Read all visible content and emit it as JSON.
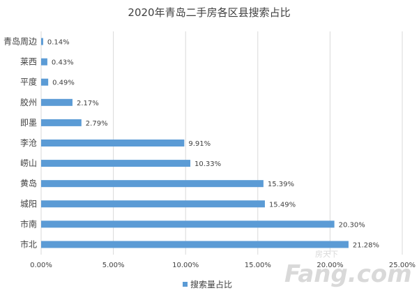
{
  "chart_data": {
    "type": "bar",
    "orientation": "horizontal",
    "title": "2020年青岛二手房各区县搜索占比",
    "categories": [
      "青岛周边",
      "莱西",
      "平度",
      "胶州",
      "即墨",
      "李沧",
      "崂山",
      "黄岛",
      "城阳",
      "市南",
      "市北"
    ],
    "series": [
      {
        "name": "搜索量占比",
        "values": [
          0.14,
          0.43,
          0.49,
          2.17,
          2.79,
          9.91,
          10.33,
          15.39,
          15.49,
          20.3,
          21.28
        ],
        "labels": [
          "0.14%",
          "0.43%",
          "0.49%",
          "2.17%",
          "2.79%",
          "9.91%",
          "10.33%",
          "15.39%",
          "15.49%",
          "20.30%",
          "21.28%"
        ]
      }
    ],
    "xlim": [
      0,
      25
    ],
    "xticks": [
      "0.00%",
      "5.00%",
      "10.00%",
      "15.00%",
      "20.00%",
      "25.00%"
    ],
    "grid": "vertical",
    "legend": "bottom",
    "bar_color": "#5b9bd5"
  },
  "watermark": {
    "main": "Fang.com",
    "small": "房天下"
  }
}
